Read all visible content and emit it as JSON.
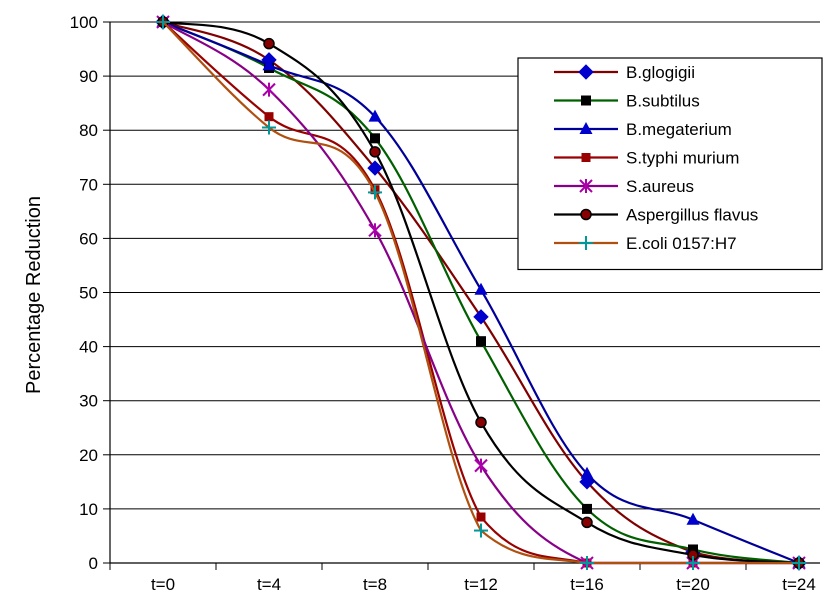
{
  "chart_data": {
    "type": "line",
    "ylabel": "Percentage Reduction",
    "xlabel": "",
    "categories": [
      "t=0",
      "t=4",
      "t=8",
      "t=12",
      "t=16",
      "t=20",
      "t=24"
    ],
    "ylim": [
      0,
      100
    ],
    "yticks": [
      0,
      10,
      20,
      30,
      40,
      50,
      60,
      70,
      80,
      90,
      100
    ],
    "grid": "horizontal",
    "legend_position": "right",
    "series": [
      {
        "name": "B.glogigii",
        "color": "#800000",
        "marker": "diamond",
        "marker_color": "#0000cc",
        "values": [
          100,
          93,
          73,
          45.5,
          15,
          2,
          0
        ]
      },
      {
        "name": "B.subtilus",
        "color": "#006000",
        "marker": "square",
        "marker_color": "#000000",
        "values": [
          100,
          91.5,
          78.5,
          41,
          10,
          2.5,
          0
        ]
      },
      {
        "name": "B.megaterium",
        "color": "#000099",
        "marker": "triangle",
        "marker_color": "#0000cc",
        "values": [
          100,
          92,
          82.5,
          50.5,
          16.5,
          8,
          0
        ]
      },
      {
        "name": "S.typhi murium",
        "color": "#990000",
        "marker": "square-small",
        "marker_color": "#990000",
        "values": [
          100,
          82.5,
          69,
          8.5,
          0,
          0,
          0
        ]
      },
      {
        "name": "S.aureus",
        "color": "#880088",
        "marker": "asterisk",
        "marker_color": "#aa00aa",
        "values": [
          100,
          87.5,
          61.5,
          18,
          0,
          0,
          0
        ]
      },
      {
        "name": "Aspergillus flavus",
        "color": "#000000",
        "marker": "circle",
        "marker_color": "#880000",
        "values": [
          100,
          96,
          76,
          26,
          7.5,
          1.5,
          0
        ]
      },
      {
        "name": "E.coli 0157:H7",
        "color": "#b05010",
        "marker": "plus",
        "marker_color": "#009999",
        "values": [
          100,
          80.5,
          68.5,
          6,
          0,
          0,
          0
        ]
      }
    ]
  }
}
